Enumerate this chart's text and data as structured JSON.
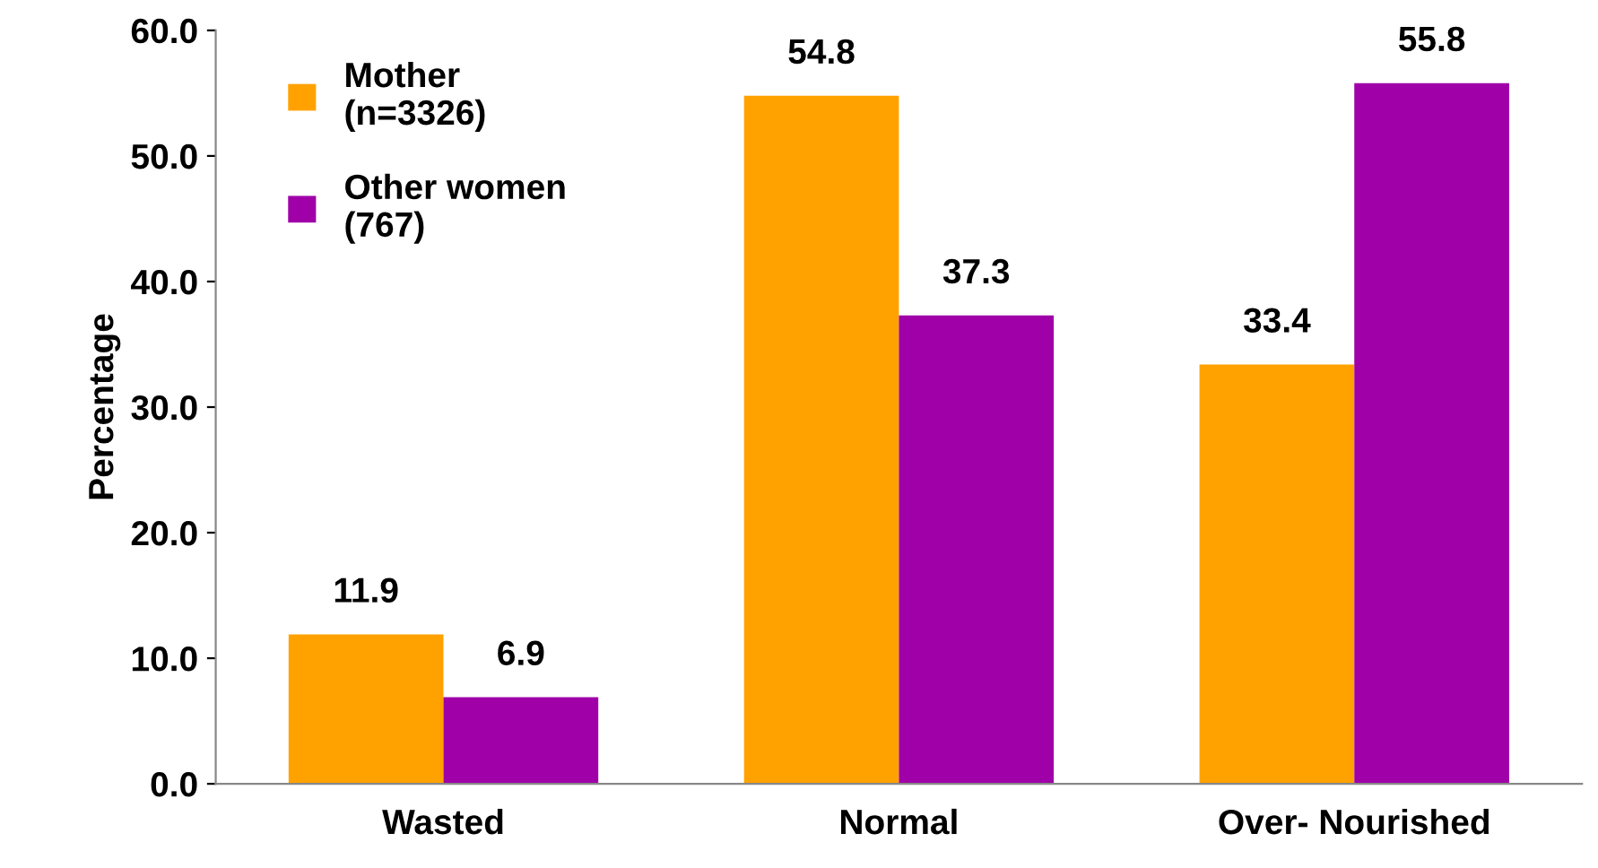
{
  "chart_data": {
    "type": "bar",
    "categories": [
      "Wasted",
      "Normal",
      "Over- Nourished"
    ],
    "ylabel": "Percentage",
    "series": [
      {
        "name": "Mother\n(n=3326)",
        "color": "#ffa200",
        "values": [
          11.9,
          54.8,
          33.4
        ]
      },
      {
        "name": "Other women\n(767)",
        "color": "#a000a8",
        "values": [
          6.9,
          37.3,
          55.8
        ]
      }
    ],
    "ylim": [
      0,
      60
    ],
    "yticks": [
      {
        "value": 0,
        "label": "0.0"
      },
      {
        "value": 10,
        "label": "10.0"
      },
      {
        "value": 20,
        "label": "20.0"
      },
      {
        "value": 30,
        "label": "30.0"
      },
      {
        "value": 40,
        "label": "40.0"
      },
      {
        "value": 50,
        "label": "50.0"
      },
      {
        "value": 60,
        "label": "60.0"
      }
    ],
    "data_labels": true,
    "grid": false,
    "legend": "top left"
  }
}
